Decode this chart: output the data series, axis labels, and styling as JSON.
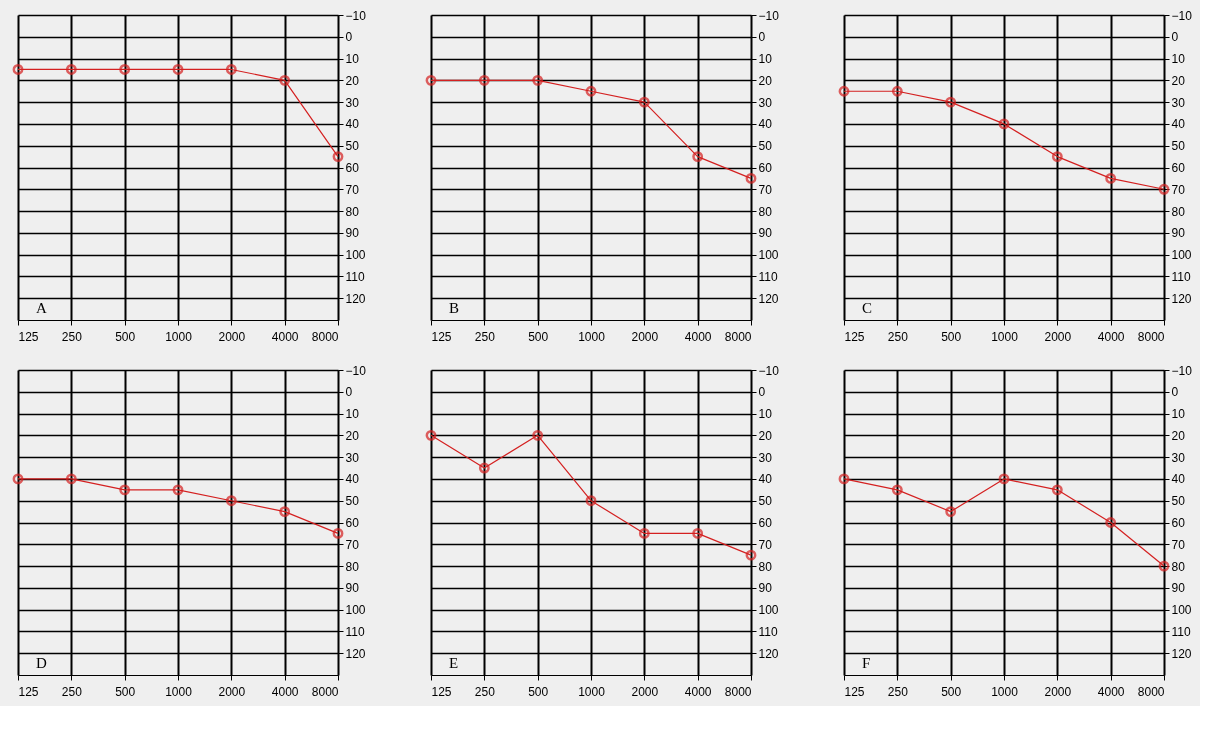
{
  "chart_data": [
    {
      "type": "line",
      "categories": [
        "125",
        "250",
        "500",
        "1000",
        "2000",
        "4000",
        "8000"
      ],
      "series": [
        {
          "color": "#d42020",
          "values": [
            15,
            15,
            15,
            15,
            15,
            20,
            55
          ]
        }
      ],
      "ylim": [
        130,
        -10
      ],
      "yticks": [
        -10,
        0,
        10,
        20,
        30,
        40,
        50,
        60,
        70,
        80,
        90,
        100,
        110,
        120
      ],
      "grid": true,
      "marker": "circle",
      "line_style": "solid",
      "annotations": [
        "A"
      ]
    },
    {
      "type": "line",
      "categories": [
        "125",
        "250",
        "500",
        "1000",
        "2000",
        "4000",
        "8000"
      ],
      "series": [
        {
          "color": "#d42020",
          "values": [
            20,
            20,
            20,
            25,
            30,
            55,
            65
          ]
        }
      ],
      "ylim": [
        130,
        -10
      ],
      "yticks": [
        -10,
        0,
        10,
        20,
        30,
        40,
        50,
        60,
        70,
        80,
        90,
        100,
        110,
        120
      ],
      "grid": true,
      "marker": "circle",
      "line_style": "solid",
      "annotations": [
        "B"
      ]
    },
    {
      "type": "line",
      "categories": [
        "125",
        "250",
        "500",
        "1000",
        "2000",
        "4000",
        "8000"
      ],
      "series": [
        {
          "color": "#d42020",
          "values": [
            25,
            25,
            30,
            40,
            55,
            65,
            70
          ]
        }
      ],
      "ylim": [
        130,
        -10
      ],
      "yticks": [
        -10,
        0,
        10,
        20,
        30,
        40,
        50,
        60,
        70,
        80,
        90,
        100,
        110,
        120
      ],
      "grid": true,
      "marker": "circle",
      "line_style": "solid",
      "annotations": [
        "C"
      ]
    },
    {
      "type": "line",
      "categories": [
        "125",
        "250",
        "500",
        "1000",
        "2000",
        "4000",
        "8000"
      ],
      "series": [
        {
          "color": "#d42020",
          "values": [
            40,
            40,
            45,
            45,
            50,
            55,
            65
          ]
        }
      ],
      "ylim": [
        130,
        -10
      ],
      "yticks": [
        -10,
        0,
        10,
        20,
        30,
        40,
        50,
        60,
        70,
        80,
        90,
        100,
        110,
        120
      ],
      "grid": true,
      "marker": "circle",
      "line_style": "solid",
      "annotations": [
        "D"
      ]
    },
    {
      "type": "line",
      "categories": [
        "125",
        "250",
        "500",
        "1000",
        "2000",
        "4000",
        "8000"
      ],
      "series": [
        {
          "color": "#d42020",
          "values": [
            20,
            35,
            20,
            50,
            65,
            65,
            75
          ]
        }
      ],
      "ylim": [
        130,
        -10
      ],
      "yticks": [
        -10,
        0,
        10,
        20,
        30,
        40,
        50,
        60,
        70,
        80,
        90,
        100,
        110,
        120
      ],
      "grid": true,
      "marker": "circle",
      "line_style": "solid",
      "annotations": [
        "E"
      ]
    },
    {
      "type": "line",
      "categories": [
        "125",
        "250",
        "500",
        "1000",
        "2000",
        "4000",
        "8000"
      ],
      "series": [
        {
          "color": "#d42020",
          "values": [
            40,
            45,
            55,
            40,
            45,
            60,
            80
          ]
        }
      ],
      "ylim": [
        130,
        -10
      ],
      "yticks": [
        -10,
        0,
        10,
        20,
        30,
        40,
        50,
        60,
        70,
        80,
        90,
        100,
        110,
        120
      ],
      "grid": true,
      "marker": "circle",
      "line_style": "solid",
      "annotations": [
        "F"
      ]
    }
  ]
}
